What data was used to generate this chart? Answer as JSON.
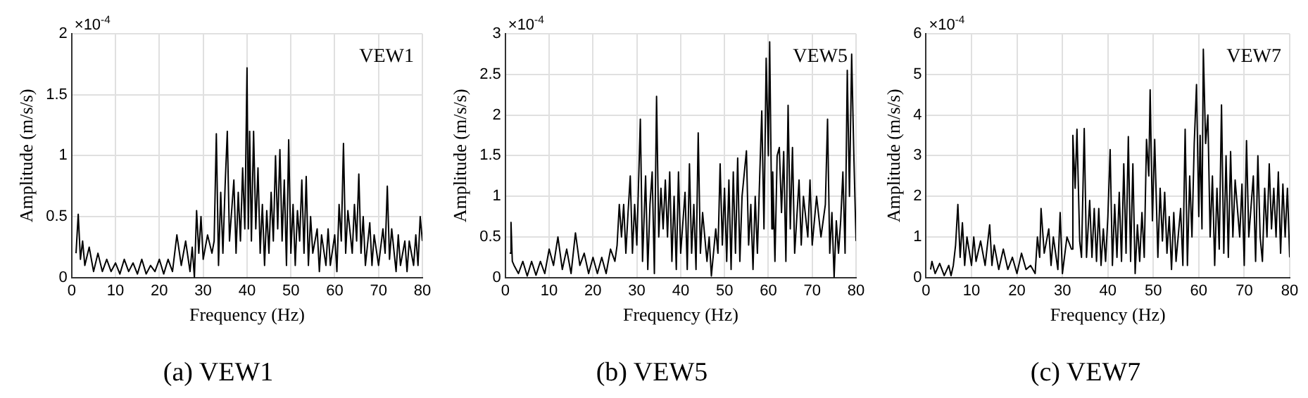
{
  "chart_data": [
    {
      "type": "line",
      "title": "(a) VEW1",
      "xlabel": "Frequency (Hz)",
      "ylabel": "Amplitude (m/s/s)",
      "annotations": [
        "×10$^{-4}$",
        "VEW1"
      ],
      "xlim": [
        0,
        80
      ],
      "xticks": [
        0,
        10,
        20,
        30,
        40,
        50,
        60,
        70,
        80
      ],
      "ylim": [
        0,
        2
      ],
      "yticks": [
        0,
        0.5,
        1,
        1.5,
        2
      ],
      "grid": true,
      "color": "#000000",
      "x": [
        1,
        1.5,
        2,
        2.5,
        3,
        4,
        5,
        6,
        7,
        8,
        9,
        10,
        11,
        12,
        13,
        14,
        15,
        16,
        17,
        18,
        19,
        20,
        21,
        22,
        23,
        24,
        25,
        26,
        27,
        27.5,
        28,
        28.5,
        29,
        29.5,
        30,
        31,
        32,
        32.5,
        33,
        33.5,
        34,
        34.5,
        35,
        35.5,
        36,
        37,
        37.5,
        38,
        38.5,
        39,
        39.5,
        40,
        40.3,
        40.6,
        41,
        41.5,
        42,
        42.5,
        43,
        43.5,
        44,
        44.5,
        45,
        45.5,
        46,
        46.5,
        47,
        47.5,
        48,
        48.5,
        49,
        49.5,
        50,
        50.5,
        51,
        51.5,
        52,
        52.5,
        53,
        53.5,
        54,
        54.5,
        55,
        56,
        56.5,
        57,
        58,
        58.5,
        59,
        60,
        60.5,
        61,
        61.5,
        62,
        62.5,
        63,
        64,
        64.5,
        65,
        65.5,
        66,
        66.5,
        67,
        68,
        68.5,
        69,
        70,
        71,
        71.5,
        72,
        72.5,
        73,
        74,
        74.5,
        75,
        76,
        76.5,
        77,
        78,
        78.5,
        79,
        79.5,
        80
      ],
      "values": [
        0.2,
        0.52,
        0.15,
        0.3,
        0.1,
        0.25,
        0.05,
        0.2,
        0.05,
        0.15,
        0.05,
        0.12,
        0.03,
        0.15,
        0.05,
        0.12,
        0.03,
        0.15,
        0.03,
        0.1,
        0.05,
        0.15,
        0.03,
        0.15,
        0.05,
        0.35,
        0.1,
        0.3,
        0.05,
        0.25,
        0,
        0.55,
        0.2,
        0.5,
        0.15,
        0.35,
        0.2,
        0.3,
        1.18,
        0.1,
        0.7,
        0.2,
        0.75,
        1.2,
        0.3,
        0.8,
        0.2,
        0.7,
        0.3,
        0.9,
        0.4,
        1.72,
        0.4,
        1.2,
        0.3,
        1.2,
        0.4,
        0.9,
        0.2,
        0.6,
        0.1,
        0.55,
        0.2,
        0.7,
        0.3,
        1.0,
        0.4,
        1.05,
        0.3,
        0.8,
        0.1,
        1.13,
        0.2,
        0.6,
        0.1,
        0.55,
        0.3,
        0.8,
        0.2,
        0.83,
        0.1,
        0.5,
        0.2,
        0.4,
        0.05,
        0.35,
        0.1,
        0.4,
        0.1,
        0.35,
        0.05,
        0.6,
        0.3,
        1.1,
        0.2,
        0.55,
        0.2,
        0.6,
        0.3,
        0.85,
        0.2,
        0.5,
        0.1,
        0.45,
        0.1,
        0.35,
        0.1,
        0.4,
        0.2,
        0.75,
        0.15,
        0.4,
        0.05,
        0.35,
        0.1,
        0.3,
        0.05,
        0.3,
        0.1,
        0.35,
        0.1,
        0.5,
        0.3
      ]
    },
    {
      "type": "line",
      "title": "(b) VEW5",
      "xlabel": "Frequency (Hz)",
      "ylabel": "Amplitude (m/s/s)",
      "annotations": [
        "×10$^{-4}$",
        "VEW5"
      ],
      "xlim": [
        0,
        80
      ],
      "xticks": [
        0,
        10,
        20,
        30,
        40,
        50,
        60,
        70,
        80
      ],
      "ylim": [
        0,
        3
      ],
      "yticks": [
        0,
        0.5,
        1,
        1.5,
        2,
        2.5,
        3
      ],
      "grid": true,
      "color": "#000000",
      "x": [
        1,
        1.3,
        1.6,
        2,
        3,
        4,
        5,
        6,
        7,
        8,
        9,
        10,
        11,
        12,
        13,
        14,
        15,
        16,
        17,
        18,
        19,
        20,
        21,
        22,
        23,
        24,
        25,
        25.5,
        26,
        26.5,
        27,
        27.5,
        28,
        28.5,
        29,
        29.5,
        30,
        30.8,
        31.3,
        32,
        32.5,
        33,
        33.5,
        34,
        34.5,
        35,
        35.5,
        36,
        36.5,
        37,
        37.5,
        38,
        38.5,
        39,
        39.5,
        40,
        41,
        41.5,
        42,
        42.5,
        43,
        43.5,
        44,
        44.5,
        45,
        46,
        46.5,
        47,
        48,
        48.5,
        49,
        49.5,
        50,
        50.5,
        51,
        51.5,
        52,
        52.5,
        53,
        53.5,
        54,
        55,
        55.5,
        56,
        56.5,
        57,
        57.5,
        58,
        58.5,
        59,
        59.5,
        60,
        60.3,
        60.8,
        61,
        61.5,
        62,
        62.5,
        63,
        63.5,
        64,
        64.5,
        65,
        65.5,
        66,
        67,
        67.5,
        68,
        69,
        69.5,
        70,
        71,
        72,
        73,
        73.5,
        74,
        74.5,
        75,
        75.5,
        76,
        76.5,
        77,
        77.5,
        78,
        78.5,
        79,
        79.5,
        80
      ],
      "values": [
        0.3,
        0.68,
        0.2,
        0.15,
        0.05,
        0.2,
        0.02,
        0.2,
        0.03,
        0.2,
        0.05,
        0.35,
        0.15,
        0.5,
        0.1,
        0.35,
        0.05,
        0.55,
        0.15,
        0.3,
        0.05,
        0.25,
        0.05,
        0.25,
        0.05,
        0.35,
        0.2,
        0.4,
        0.9,
        0.5,
        0.9,
        0.3,
        0.8,
        1.25,
        0.3,
        0.9,
        0.4,
        1.95,
        0.2,
        1.25,
        0.1,
        0.9,
        1.3,
        0.05,
        2.23,
        0.5,
        1.1,
        0.6,
        1.2,
        0.5,
        1.3,
        0.2,
        1.0,
        0.1,
        1.3,
        0.3,
        1.05,
        0.1,
        1.4,
        0.3,
        0.9,
        0.1,
        1.78,
        0.3,
        0.8,
        0.2,
        0.5,
        0.02,
        0.6,
        0.3,
        1.4,
        0.4,
        1.1,
        0.2,
        1.2,
        0.1,
        1.3,
        0.3,
        1.47,
        0.2,
        1.0,
        1.56,
        0.4,
        0.9,
        0.1,
        1.0,
        0.3,
        1.2,
        2.05,
        0.6,
        2.7,
        1.5,
        2.9,
        0.6,
        1.3,
        0.2,
        1.5,
        1.6,
        0.8,
        1.55,
        0.2,
        2.12,
        0.6,
        1.6,
        0.3,
        1.2,
        0.4,
        1.0,
        0.5,
        1.2,
        0.4,
        1.0,
        0.5,
        0.9,
        1.95,
        0.3,
        0.8,
        0,
        0.7,
        0.3,
        0.7,
        1.3,
        0.3,
        2.55,
        1.0,
        2.75,
        1.5,
        0.45
      ]
    },
    {
      "type": "line",
      "title": "(c) VEW7",
      "xlabel": "Frequency (Hz)",
      "ylabel": "Amplitude (m/s/s)",
      "annotations": [
        "×10$^{-4}$",
        "VEW7"
      ],
      "xlim": [
        0,
        80
      ],
      "xticks": [
        0,
        10,
        20,
        30,
        40,
        50,
        60,
        70,
        80
      ],
      "ylim": [
        0,
        6
      ],
      "yticks": [
        0,
        1,
        2,
        3,
        4,
        5,
        6
      ],
      "grid": true,
      "color": "#000000",
      "x": [
        1,
        1.3,
        2,
        3,
        4,
        5,
        5.5,
        6,
        6.5,
        7,
        7.5,
        8,
        8.5,
        9,
        10,
        10.5,
        11,
        12,
        13,
        14,
        14.5,
        15,
        16,
        17,
        18,
        19,
        20,
        21,
        22,
        23,
        24,
        24.5,
        25,
        25.3,
        26,
        27,
        27.5,
        28,
        29,
        29.5,
        30,
        31,
        32,
        32.3,
        32.8,
        33.2,
        33.8,
        34.2,
        34.8,
        35.3,
        36,
        36.5,
        37,
        37.5,
        38,
        38.5,
        39,
        39.5,
        40,
        40.5,
        41,
        41.5,
        42,
        42.5,
        43,
        43.5,
        44,
        44.5,
        45,
        45.5,
        46,
        46.5,
        47,
        47.5,
        48,
        48.5,
        49,
        49.3,
        49.8,
        50.3,
        51,
        51.5,
        52,
        52.5,
        53,
        53.5,
        54,
        54.5,
        55,
        56,
        56.5,
        57,
        57.5,
        58,
        58.5,
        59,
        59.5,
        60,
        60.3,
        60.7,
        61,
        61.5,
        62,
        62.5,
        63,
        63.5,
        64,
        64.5,
        65,
        65.5,
        66,
        66.5,
        67,
        67.5,
        68,
        69,
        69.5,
        70,
        70.5,
        71,
        72,
        72.5,
        73,
        73.5,
        74,
        74.5,
        75,
        75.5,
        76,
        76.5,
        77,
        77.5,
        78,
        78.5,
        79,
        79.5,
        80
      ],
      "values": [
        0.2,
        0.4,
        0.1,
        0.35,
        0.05,
        0.3,
        0.05,
        0.3,
        0.8,
        1.8,
        0.5,
        1.35,
        0.3,
        1.0,
        0.3,
        1.0,
        0.4,
        0.9,
        0.3,
        1.3,
        0.3,
        0.8,
        0.2,
        0.7,
        0.2,
        0.5,
        0.1,
        0.6,
        0.2,
        0.3,
        0.1,
        1.0,
        0.5,
        1.7,
        0.6,
        1.2,
        0.3,
        1.0,
        0.2,
        1.6,
        0.1,
        1.0,
        0.7,
        3.5,
        2.2,
        3.65,
        0.9,
        0.5,
        3.67,
        0.5,
        1.9,
        0.5,
        1.7,
        0.4,
        1.7,
        0.3,
        1.2,
        0.4,
        1.5,
        3.15,
        0.3,
        1.8,
        0.5,
        2.1,
        0.4,
        2.8,
        0.6,
        3.47,
        0.4,
        2.8,
        0.1,
        1.3,
        0.4,
        1.6,
        0.5,
        3.4,
        2.5,
        4.62,
        1.4,
        3.4,
        0.5,
        2.2,
        0.9,
        2.1,
        0.6,
        1.5,
        0.2,
        1.6,
        0.4,
        1.7,
        0.3,
        3.65,
        0.3,
        2.5,
        1.0,
        3.3,
        4.75,
        1.5,
        3.5,
        1.2,
        5.62,
        3.3,
        4.0,
        1.0,
        2.5,
        0.3,
        2.2,
        0.7,
        4.25,
        0.6,
        3.0,
        0.5,
        3.1,
        1.0,
        2.4,
        1.0,
        2.3,
        0.3,
        3.37,
        1.0,
        2.5,
        0.4,
        3.0,
        1.0,
        0.4,
        2.2,
        1.0,
        2.8,
        1.2,
        2.2,
        1.0,
        2.6,
        0.6,
        2.3,
        1.0,
        2.2,
        0.5
      ]
    }
  ]
}
